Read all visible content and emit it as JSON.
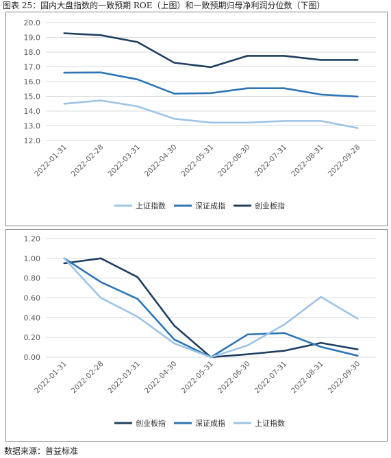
{
  "page_title": "图表 25：国内大盘指数的一致预期 ROE（上图）和一致预期归母净利润分位数（下图）",
  "source_note": "数据来源：普益标准",
  "colors": {
    "sh": "#9dc3e6",
    "sz": "#2e75b6",
    "cyb": "#1f3f60",
    "grid": "#d9d9d9",
    "axis_text": "#595959"
  },
  "chart_data": [
    {
      "type": "line",
      "x": [
        "2022-01-31",
        "2022-02-28",
        "2022-03-31",
        "2022-04-30",
        "2022-05-31",
        "2022-06-30",
        "2022-07-31",
        "2022-08-31",
        "2022-09-28"
      ],
      "ylim": [
        12.0,
        20.0
      ],
      "yticks": [
        "12.0",
        "13.0",
        "14.0",
        "15.0",
        "16.0",
        "17.0",
        "18.0",
        "19.0",
        "20.0"
      ],
      "grid": true,
      "legend_position": "bottom",
      "series": [
        {
          "name": "上证指数",
          "color": "#9dc3e6",
          "values": [
            14.5,
            14.72,
            14.32,
            13.48,
            13.22,
            13.22,
            13.33,
            13.33,
            12.85
          ]
        },
        {
          "name": "深证成指",
          "color": "#2e75b6",
          "values": [
            16.6,
            16.62,
            16.15,
            15.18,
            15.22,
            15.55,
            15.55,
            15.12,
            14.98
          ]
        },
        {
          "name": "创业板指",
          "color": "#1f3f60",
          "values": [
            19.28,
            19.15,
            18.68,
            17.28,
            16.98,
            17.75,
            17.75,
            17.47,
            17.47
          ]
        }
      ]
    },
    {
      "type": "line",
      "x": [
        "2022-01-31",
        "2022-02-28",
        "2022-03-31",
        "2022-04-30",
        "2022-05-31",
        "2022-06-30",
        "2022-07-31",
        "2022-08-31",
        "2022-09-30"
      ],
      "ylim": [
        0.0,
        1.2
      ],
      "yticks": [
        "0.00",
        "0.20",
        "0.40",
        "0.60",
        "0.80",
        "1.00",
        "1.20"
      ],
      "grid": true,
      "legend_position": "bottom",
      "series": [
        {
          "name": "创业板指",
          "color": "#1f3f60",
          "values": [
            0.95,
            1.0,
            0.81,
            0.32,
            0.0,
            0.03,
            0.065,
            0.145,
            0.08
          ]
        },
        {
          "name": "深证成指",
          "color": "#2e75b6",
          "values": [
            1.0,
            0.76,
            0.59,
            0.18,
            0.0,
            0.23,
            0.245,
            0.105,
            0.015
          ]
        },
        {
          "name": "上证指数",
          "color": "#9dc3e6",
          "values": [
            1.0,
            0.6,
            0.41,
            0.14,
            0.0,
            0.12,
            0.33,
            0.61,
            0.39
          ]
        }
      ]
    }
  ]
}
